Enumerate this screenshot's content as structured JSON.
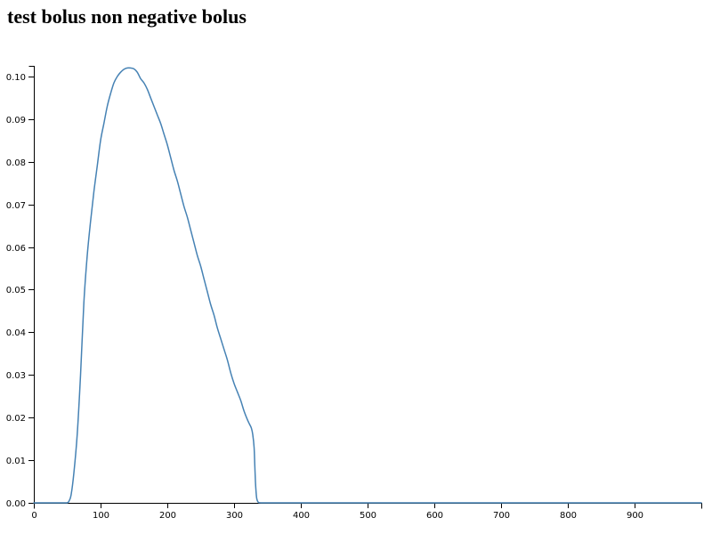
{
  "page": {
    "title": "test bolus non negative bolus"
  },
  "chart_data": {
    "type": "line",
    "title": "test bolus non negative bolus",
    "xlabel": "",
    "ylabel": "",
    "xlim": [
      0,
      1000
    ],
    "ylim": [
      0,
      0.1025
    ],
    "x_ticks": [
      0,
      100,
      200,
      300,
      400,
      500,
      600,
      700,
      800,
      900
    ],
    "x_tick_labels": [
      "0",
      "100",
      "200",
      "300",
      "400",
      "500",
      "600",
      "700",
      "800",
      "900"
    ],
    "y_ticks": [
      0,
      0.01,
      0.02,
      0.03,
      0.04,
      0.05,
      0.06,
      0.07,
      0.08,
      0.09,
      0.1
    ],
    "y_tick_labels": [
      "0.00",
      "0.01",
      "0.02",
      "0.03",
      "0.04",
      "0.05",
      "0.06",
      "0.07",
      "0.08",
      "0.09",
      "0.10"
    ],
    "grid": false,
    "legend": "none",
    "colors": {
      "line": "#4682b4",
      "axis": "#000000"
    },
    "series": [
      {
        "values": [
          [
            0,
            0
          ],
          [
            20,
            0
          ],
          [
            40,
            0
          ],
          [
            50,
            0
          ],
          [
            53,
            0.0005
          ],
          [
            56,
            0.002
          ],
          [
            60,
            0.007
          ],
          [
            65,
            0.016
          ],
          [
            70,
            0.03
          ],
          [
            75,
            0.047
          ],
          [
            80,
            0.058
          ],
          [
            85,
            0.066
          ],
          [
            90,
            0.073
          ],
          [
            95,
            0.079
          ],
          [
            100,
            0.085
          ],
          [
            105,
            0.089
          ],
          [
            110,
            0.093
          ],
          [
            115,
            0.096
          ],
          [
            120,
            0.0985
          ],
          [
            125,
            0.1
          ],
          [
            130,
            0.101
          ],
          [
            135,
            0.1017
          ],
          [
            140,
            0.102
          ],
          [
            145,
            0.102
          ],
          [
            150,
            0.1018
          ],
          [
            155,
            0.101
          ],
          [
            160,
            0.0995
          ],
          [
            165,
            0.0985
          ],
          [
            170,
            0.097
          ],
          [
            175,
            0.095
          ],
          [
            180,
            0.093
          ],
          [
            185,
            0.091
          ],
          [
            190,
            0.089
          ],
          [
            195,
            0.0865
          ],
          [
            200,
            0.084
          ],
          [
            205,
            0.081
          ],
          [
            210,
            0.078
          ],
          [
            215,
            0.0755
          ],
          [
            220,
            0.0725
          ],
          [
            225,
            0.0695
          ],
          [
            230,
            0.067
          ],
          [
            235,
            0.064
          ],
          [
            240,
            0.061
          ],
          [
            245,
            0.058
          ],
          [
            250,
            0.0555
          ],
          [
            255,
            0.0525
          ],
          [
            260,
            0.0495
          ],
          [
            265,
            0.0465
          ],
          [
            270,
            0.044
          ],
          [
            275,
            0.041
          ],
          [
            280,
            0.0385
          ],
          [
            285,
            0.036
          ],
          [
            290,
            0.0335
          ],
          [
            295,
            0.0305
          ],
          [
            300,
            0.028
          ],
          [
            305,
            0.026
          ],
          [
            310,
            0.024
          ],
          [
            315,
            0.0215
          ],
          [
            320,
            0.0195
          ],
          [
            323,
            0.0185
          ],
          [
            326,
            0.0175
          ],
          [
            328,
            0.016
          ],
          [
            330,
            0.013
          ],
          [
            331,
            0.009
          ],
          [
            332,
            0.005
          ],
          [
            333,
            0.0025
          ],
          [
            334,
            0.001
          ],
          [
            336,
            0.0002
          ],
          [
            340,
            0
          ],
          [
            360,
            0
          ],
          [
            400,
            0
          ],
          [
            500,
            0
          ],
          [
            600,
            0
          ],
          [
            700,
            0
          ],
          [
            800,
            0
          ],
          [
            900,
            0
          ],
          [
            1000,
            0
          ]
        ]
      }
    ]
  }
}
